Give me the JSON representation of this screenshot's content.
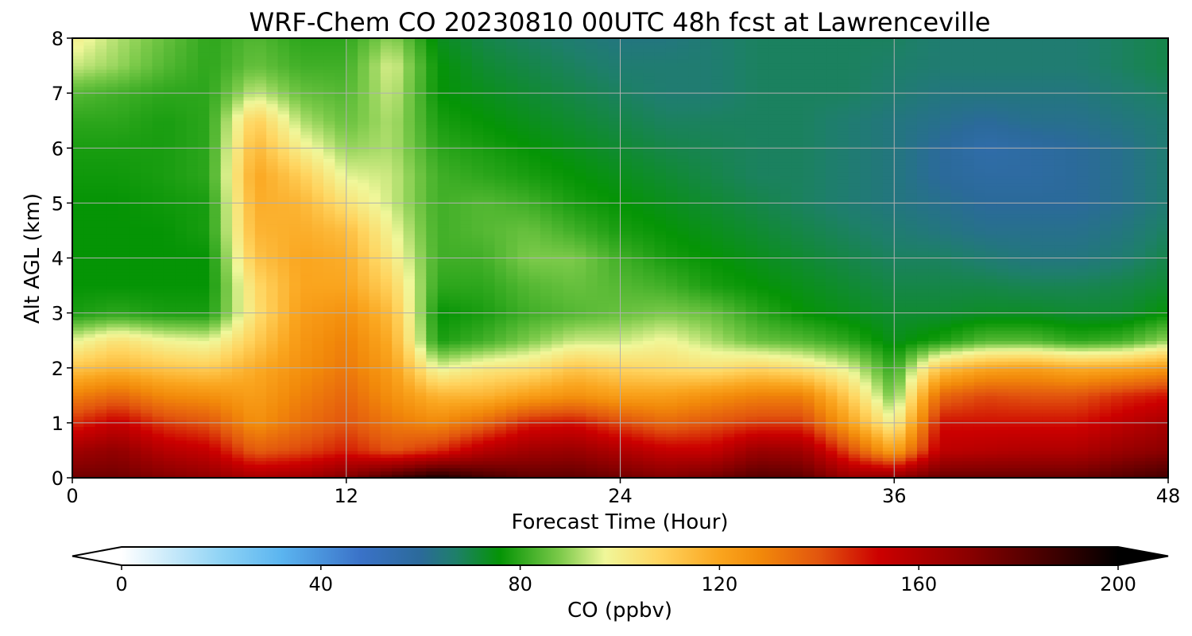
{
  "chart_data": {
    "type": "heatmap",
    "title": "WRF-Chem CO  20230810 00UTC 48h fcst at Lawrenceville",
    "xlabel": "Forecast Time (Hour)",
    "ylabel": "Alt AGL (km)",
    "xlim": [
      0,
      48
    ],
    "ylim": [
      0,
      8
    ],
    "xticks": [
      0,
      12,
      24,
      36,
      48
    ],
    "yticks": [
      0,
      1,
      2,
      3,
      4,
      5,
      6,
      7,
      8
    ],
    "grid": true,
    "colorbar": {
      "label": "CO  (ppbv)",
      "range": [
        0,
        200
      ],
      "ticks": [
        0,
        40,
        80,
        120,
        160,
        200
      ],
      "extend": "both",
      "color_stops": [
        {
          "value": 0,
          "color": "#ffffff"
        },
        {
          "value": 20,
          "color": "#8fd3f5"
        },
        {
          "value": 32,
          "color": "#5bb5f0"
        },
        {
          "value": 48,
          "color": "#3a72c8"
        },
        {
          "value": 60,
          "color": "#2b6a9a"
        },
        {
          "value": 67,
          "color": "#1e7f6a"
        },
        {
          "value": 76,
          "color": "#059405"
        },
        {
          "value": 88,
          "color": "#7cca4a"
        },
        {
          "value": 97,
          "color": "#f0f79a"
        },
        {
          "value": 108,
          "color": "#ffd45f"
        },
        {
          "value": 120,
          "color": "#faa51e"
        },
        {
          "value": 128,
          "color": "#f28a0a"
        },
        {
          "value": 140,
          "color": "#e2550e"
        },
        {
          "value": 152,
          "color": "#cc0000"
        },
        {
          "value": 170,
          "color": "#8a0000"
        },
        {
          "value": 188,
          "color": "#3a0000"
        },
        {
          "value": 200,
          "color": "#000000"
        }
      ]
    },
    "x": [
      0,
      2,
      4,
      6,
      8,
      10,
      12,
      14,
      16,
      18,
      20,
      22,
      24,
      26,
      28,
      30,
      32,
      34,
      36,
      38,
      40,
      42,
      44,
      46,
      48
    ],
    "y": [
      0,
      0.5,
      1,
      1.5,
      2,
      2.5,
      3,
      3.5,
      4,
      4.5,
      5,
      5.5,
      6,
      6.5,
      7,
      7.5,
      8
    ],
    "z": [
      [
        176,
        176,
        172,
        168,
        162,
        164,
        172,
        186,
        196,
        186,
        180,
        180,
        176,
        172,
        176,
        182,
        180,
        166,
        170,
        178,
        178,
        178,
        178,
        182,
        186
      ],
      [
        164,
        168,
        158,
        154,
        138,
        142,
        148,
        140,
        146,
        158,
        164,
        166,
        160,
        154,
        154,
        166,
        164,
        142,
        120,
        156,
        158,
        160,
        160,
        166,
        170
      ],
      [
        146,
        154,
        144,
        140,
        126,
        134,
        140,
        132,
        128,
        136,
        148,
        150,
        142,
        136,
        140,
        144,
        144,
        122,
        98,
        150,
        150,
        150,
        150,
        156,
        162
      ],
      [
        130,
        136,
        128,
        126,
        122,
        130,
        136,
        126,
        116,
        116,
        122,
        126,
        122,
        122,
        126,
        130,
        130,
        110,
        86,
        136,
        142,
        140,
        140,
        146,
        150
      ],
      [
        112,
        116,
        112,
        110,
        118,
        126,
        132,
        122,
        96,
        102,
        104,
        112,
        108,
        106,
        104,
        108,
        104,
        96,
        80,
        112,
        120,
        122,
        118,
        120,
        124
      ],
      [
        96,
        104,
        98,
        96,
        110,
        124,
        130,
        118,
        78,
        82,
        88,
        94,
        94,
        98,
        92,
        86,
        84,
        80,
        74,
        78,
        84,
        84,
        80,
        82,
        90
      ],
      [
        78,
        80,
        78,
        78,
        104,
        122,
        126,
        114,
        76,
        78,
        82,
        84,
        86,
        88,
        86,
        80,
        76,
        74,
        72,
        72,
        73,
        73,
        72,
        72,
        76
      ],
      [
        76,
        76,
        76,
        76,
        106,
        120,
        120,
        108,
        80,
        80,
        84,
        86,
        84,
        82,
        78,
        76,
        74,
        72,
        70,
        70,
        70,
        69,
        69,
        70,
        72
      ],
      [
        76,
        76,
        76,
        76,
        112,
        120,
        118,
        102,
        82,
        82,
        88,
        88,
        82,
        78,
        76,
        74,
        72,
        70,
        68,
        68,
        66,
        64,
        64,
        66,
        70
      ],
      [
        76,
        76,
        76,
        78,
        116,
        118,
        114,
        98,
        82,
        84,
        86,
        82,
        78,
        76,
        74,
        72,
        70,
        68,
        66,
        64,
        62,
        62,
        62,
        64,
        68
      ],
      [
        76,
        76,
        77,
        78,
        118,
        116,
        104,
        94,
        82,
        84,
        82,
        78,
        76,
        74,
        72,
        70,
        68,
        66,
        64,
        62,
        60,
        60,
        60,
        62,
        66
      ],
      [
        77,
        77,
        78,
        80,
        120,
        110,
        96,
        94,
        82,
        80,
        78,
        76,
        74,
        72,
        70,
        68,
        68,
        66,
        64,
        60,
        58,
        58,
        60,
        62,
        66
      ],
      [
        78,
        78,
        78,
        80,
        116,
        100,
        90,
        92,
        80,
        78,
        76,
        74,
        72,
        70,
        69,
        68,
        68,
        66,
        64,
        60,
        56,
        58,
        60,
        62,
        66
      ],
      [
        80,
        80,
        78,
        80,
        110,
        92,
        86,
        92,
        78,
        76,
        74,
        72,
        70,
        68,
        68,
        68,
        68,
        66,
        64,
        62,
        60,
        62,
        62,
        64,
        66
      ],
      [
        84,
        82,
        80,
        80,
        94,
        86,
        84,
        94,
        76,
        74,
        72,
        70,
        68,
        66,
        66,
        68,
        68,
        68,
        66,
        64,
        64,
        64,
        64,
        66,
        68
      ],
      [
        94,
        90,
        84,
        80,
        86,
        82,
        82,
        96,
        76,
        72,
        70,
        68,
        66,
        66,
        66,
        68,
        68,
        68,
        67,
        66,
        66,
        66,
        66,
        68,
        70
      ],
      [
        100,
        92,
        86,
        80,
        84,
        80,
        80,
        90,
        74,
        70,
        68,
        66,
        64,
        64,
        66,
        68,
        68,
        68,
        68,
        66,
        66,
        66,
        66,
        68,
        70
      ]
    ]
  }
}
